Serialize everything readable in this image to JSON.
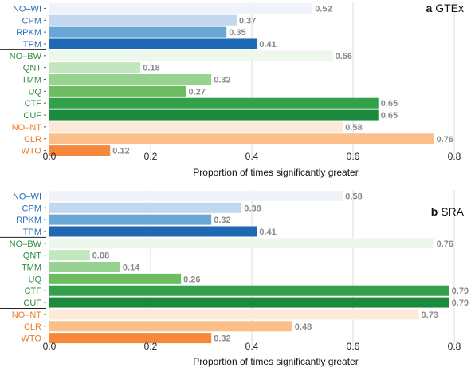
{
  "chart_data": [
    {
      "type": "bar",
      "orientation": "horizontal",
      "panel_letter": "a",
      "title": "GTEx",
      "categories": [
        "NO–WI",
        "CPM",
        "RPKM",
        "TPM",
        "NO–BW",
        "QNT",
        "TMM",
        "UQ",
        "CTF",
        "CUF",
        "NO–NT",
        "CLR",
        "WTO"
      ],
      "values": [
        0.52,
        0.37,
        0.35,
        0.41,
        0.56,
        0.18,
        0.32,
        0.27,
        0.65,
        0.65,
        0.58,
        0.76,
        0.12
      ],
      "value_labels": [
        "0.52",
        "0.37",
        "0.35",
        "0.41",
        "0.56",
        "0.18",
        "0.32",
        "0.27",
        "0.65",
        "0.65",
        "0.58",
        "0.76",
        "0.12"
      ],
      "bar_colors": [
        "#f0f4fa",
        "#c3d8ee",
        "#6aa7d6",
        "#1f68b3",
        "#eef7ec",
        "#c2e6bd",
        "#97d290",
        "#6cbd62",
        "#33a04a",
        "#1c8a3d",
        "#fde9d7",
        "#fdbf8a",
        "#f5883a"
      ],
      "label_colors": [
        "#2a6db5",
        "#2a6db5",
        "#2a6db5",
        "#2a6db5",
        "#2e8b3c",
        "#2e8b3c",
        "#2e8b3c",
        "#2e8b3c",
        "#2e8b3c",
        "#2e8b3c",
        "#ee7a22",
        "#ee7a22",
        "#ee7a22"
      ],
      "group_separators_after": [
        3,
        9
      ],
      "xlabel": "Proportion of times significantly greater",
      "xlim": [
        0,
        0.8
      ],
      "xticks": [
        "0.0",
        "0.2",
        "0.4",
        "0.6",
        "0.8"
      ],
      "grid": "vertical"
    },
    {
      "type": "bar",
      "orientation": "horizontal",
      "panel_letter": "b",
      "title": "SRA",
      "categories": [
        "NO–WI",
        "CPM",
        "RPKM",
        "TPM",
        "NO–BW",
        "QNT",
        "TMM",
        "UQ",
        "CTF",
        "CUF",
        "NO–NT",
        "CLR",
        "WTO"
      ],
      "values": [
        0.58,
        0.38,
        0.32,
        0.41,
        0.76,
        0.08,
        0.14,
        0.26,
        0.79,
        0.79,
        0.73,
        0.48,
        0.32
      ],
      "value_labels": [
        "0.58",
        "0.38",
        "0.32",
        "0.41",
        "0.76",
        "0.08",
        "0.14",
        "0.26",
        "0.79",
        "0.79",
        "0.73",
        "0.48",
        "0.32"
      ],
      "bar_colors": [
        "#f0f4fa",
        "#c3d8ee",
        "#6aa7d6",
        "#1f68b3",
        "#eef7ec",
        "#c2e6bd",
        "#97d290",
        "#6cbd62",
        "#33a04a",
        "#1c8a3d",
        "#fde9d7",
        "#fdbf8a",
        "#f5883a"
      ],
      "label_colors": [
        "#2a6db5",
        "#2a6db5",
        "#2a6db5",
        "#2a6db5",
        "#2e8b3c",
        "#2e8b3c",
        "#2e8b3c",
        "#2e8b3c",
        "#2e8b3c",
        "#2e8b3c",
        "#ee7a22",
        "#ee7a22",
        "#ee7a22"
      ],
      "group_separators_after": [
        3,
        9
      ],
      "xlabel": "Proportion of times significantly greater",
      "xlim": [
        0,
        0.8
      ],
      "xticks": [
        "0.0",
        "0.2",
        "0.4",
        "0.6",
        "0.8"
      ],
      "grid": "vertical"
    }
  ]
}
